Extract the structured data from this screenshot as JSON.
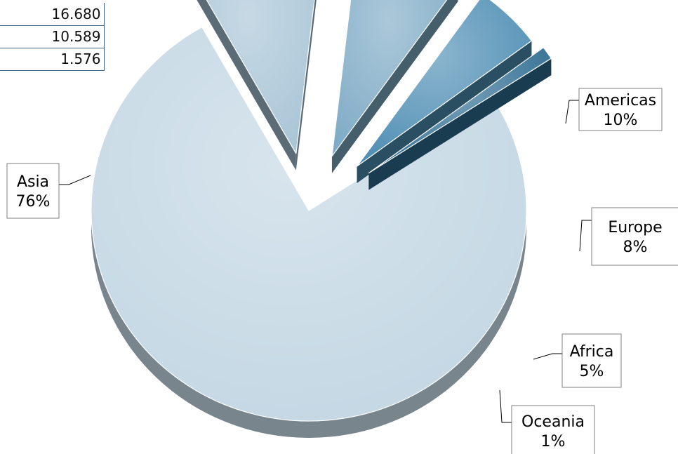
{
  "table": {
    "values": [
      "16.680",
      "10.589",
      "1.576"
    ]
  },
  "chart_data": {
    "type": "pie",
    "title": "",
    "style": "3D exploded pie",
    "slices": [
      {
        "label": "Asia",
        "value": 76,
        "percent_label": "76%",
        "color": "#c2d6e3"
      },
      {
        "label": "Americas",
        "value": 10,
        "percent_label": "10%",
        "color": "#a8c4d6"
      },
      {
        "label": "Europe",
        "value": 8,
        "percent_label": "8%",
        "color": "#7eaac5"
      },
      {
        "label": "Africa",
        "value": 5,
        "percent_label": "5%",
        "color": "#4d8db3"
      },
      {
        "label": "Oceania",
        "value": 1,
        "percent_label": "1%",
        "color": "#2f6d92"
      }
    ]
  }
}
